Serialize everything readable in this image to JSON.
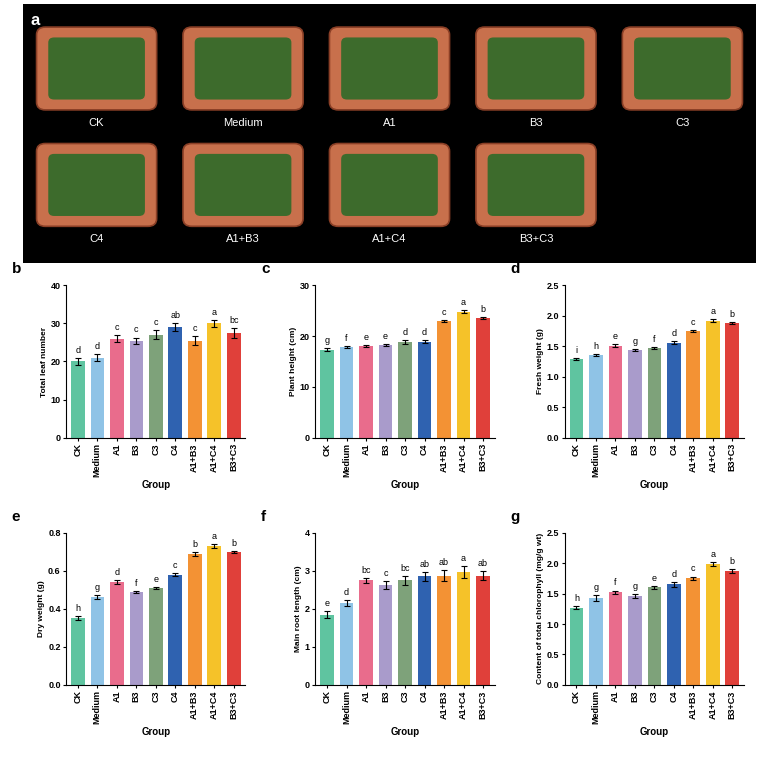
{
  "photo": {
    "panel_label": "a",
    "labels": [
      "CK",
      "Medium",
      "A1",
      "B3",
      "C3",
      "C4",
      "A1+B3",
      "A1+C4",
      "B3+C3"
    ]
  },
  "chart_data": [
    {
      "type": "bar",
      "panel_label": "b",
      "categories": [
        "CK",
        "Medium",
        "A1",
        "B3",
        "C3",
        "C4",
        "A1+B3",
        "A1+C4",
        "B3+C3"
      ],
      "values": [
        20,
        21,
        26,
        25.5,
        27,
        29,
        25.5,
        30,
        27.5
      ],
      "errors": [
        1.0,
        1.0,
        1.0,
        0.8,
        1.2,
        1.0,
        1.3,
        1.0,
        1.2
      ],
      "letters": [
        "d",
        "d",
        "c",
        "c",
        "c",
        "ab",
        "c",
        "a",
        "bc"
      ],
      "colors": [
        "#5fc4a0",
        "#8fc3e6",
        "#e96c8c",
        "#a99bcb",
        "#7ea27a",
        "#2f62b0",
        "#f39234",
        "#f5c229",
        "#e0403a"
      ],
      "xlabel": "Group",
      "ylabel": "Total leaf number",
      "ylim": [
        0,
        40
      ],
      "yticks": [
        0,
        10,
        20,
        30,
        40
      ]
    },
    {
      "type": "bar",
      "panel_label": "c",
      "categories": [
        "CK",
        "Medium",
        "A1",
        "B3",
        "C3",
        "C4",
        "A1+B3",
        "A1+C4",
        "B3+C3"
      ],
      "values": [
        17.3,
        17.8,
        18.1,
        18.3,
        18.8,
        18.9,
        23.0,
        24.8,
        23.6
      ],
      "errors": [
        0.3,
        0.2,
        0.2,
        0.2,
        0.4,
        0.3,
        0.2,
        0.3,
        0.2
      ],
      "letters": [
        "g",
        "f",
        "e",
        "e",
        "d",
        "d",
        "c",
        "a",
        "b"
      ],
      "colors": [
        "#5fc4a0",
        "#8fc3e6",
        "#e96c8c",
        "#a99bcb",
        "#7ea27a",
        "#2f62b0",
        "#f39234",
        "#f5c229",
        "#e0403a"
      ],
      "xlabel": "Group",
      "ylabel": "Plant height (cm)",
      "ylim": [
        0,
        30
      ],
      "yticks": [
        0,
        10,
        20,
        30
      ]
    },
    {
      "type": "bar",
      "panel_label": "d",
      "categories": [
        "CK",
        "Medium",
        "A1",
        "B3",
        "C3",
        "C4",
        "A1+B3",
        "A1+C4",
        "B3+C3"
      ],
      "values": [
        1.29,
        1.36,
        1.51,
        1.44,
        1.47,
        1.56,
        1.75,
        1.92,
        1.88
      ],
      "errors": [
        0.02,
        0.02,
        0.02,
        0.01,
        0.01,
        0.02,
        0.02,
        0.02,
        0.02
      ],
      "letters": [
        "i",
        "h",
        "e",
        "g",
        "f",
        "d",
        "c",
        "a",
        "b"
      ],
      "colors": [
        "#5fc4a0",
        "#8fc3e6",
        "#e96c8c",
        "#a99bcb",
        "#7ea27a",
        "#2f62b0",
        "#f39234",
        "#f5c229",
        "#e0403a"
      ],
      "xlabel": "Group",
      "ylabel": "Fresh weight (g)",
      "ylim": [
        0,
        2.5
      ],
      "yticks": [
        0.0,
        0.5,
        1.0,
        1.5,
        2.0,
        2.5
      ]
    },
    {
      "type": "bar",
      "panel_label": "e",
      "categories": [
        "CK",
        "Medium",
        "A1",
        "B3",
        "C3",
        "C4",
        "A1+B3",
        "A1+C4",
        "B3+C3"
      ],
      "values": [
        0.35,
        0.46,
        0.54,
        0.49,
        0.51,
        0.58,
        0.69,
        0.73,
        0.7
      ],
      "errors": [
        0.01,
        0.01,
        0.01,
        0.005,
        0.005,
        0.01,
        0.01,
        0.01,
        0.005
      ],
      "letters": [
        "h",
        "g",
        "d",
        "f",
        "e",
        "c",
        "b",
        "a",
        "b"
      ],
      "colors": [
        "#5fc4a0",
        "#8fc3e6",
        "#e96c8c",
        "#a99bcb",
        "#7ea27a",
        "#2f62b0",
        "#f39234",
        "#f5c229",
        "#e0403a"
      ],
      "xlabel": "Group",
      "ylabel": "Dry weight (g)",
      "ylim": [
        0,
        0.8
      ],
      "yticks": [
        0.0,
        0.2,
        0.4,
        0.6,
        0.8
      ]
    },
    {
      "type": "bar",
      "panel_label": "f",
      "categories": [
        "CK",
        "Medium",
        "A1",
        "B3",
        "C3",
        "C4",
        "A1+B3",
        "A1+C4",
        "B3+C3"
      ],
      "values": [
        1.85,
        2.15,
        2.75,
        2.62,
        2.75,
        2.85,
        2.87,
        2.97,
        2.87
      ],
      "errors": [
        0.08,
        0.08,
        0.06,
        0.1,
        0.12,
        0.12,
        0.14,
        0.15,
        0.12
      ],
      "letters": [
        "e",
        "d",
        "bc",
        "c",
        "bc",
        "ab",
        "ab",
        "a",
        "ab"
      ],
      "colors": [
        "#5fc4a0",
        "#8fc3e6",
        "#e96c8c",
        "#a99bcb",
        "#7ea27a",
        "#2f62b0",
        "#f39234",
        "#f5c229",
        "#e0403a"
      ],
      "xlabel": "Group",
      "ylabel": "Main root length (cm)",
      "ylim": [
        0,
        4
      ],
      "yticks": [
        0,
        1,
        2,
        3,
        4
      ]
    },
    {
      "type": "bar",
      "panel_label": "g",
      "categories": [
        "CK",
        "Medium",
        "A1",
        "B3",
        "C3",
        "C4",
        "A1+B3",
        "A1+C4",
        "B3+C3"
      ],
      "values": [
        1.27,
        1.42,
        1.52,
        1.46,
        1.6,
        1.65,
        1.75,
        1.99,
        1.87
      ],
      "errors": [
        0.03,
        0.05,
        0.03,
        0.03,
        0.02,
        0.04,
        0.03,
        0.03,
        0.03
      ],
      "letters": [
        "h",
        "g",
        "f",
        "g",
        "e",
        "d",
        "c",
        "a",
        "b"
      ],
      "colors": [
        "#5fc4a0",
        "#8fc3e6",
        "#e96c8c",
        "#a99bcb",
        "#7ea27a",
        "#2f62b0",
        "#f39234",
        "#f5c229",
        "#e0403a"
      ],
      "xlabel": "Group",
      "ylabel": "Content of total chlorophyll (mg/g wt)",
      "ylim": [
        0,
        2.5
      ],
      "yticks": [
        0.0,
        0.5,
        1.0,
        1.5,
        2.0,
        2.5
      ]
    }
  ]
}
